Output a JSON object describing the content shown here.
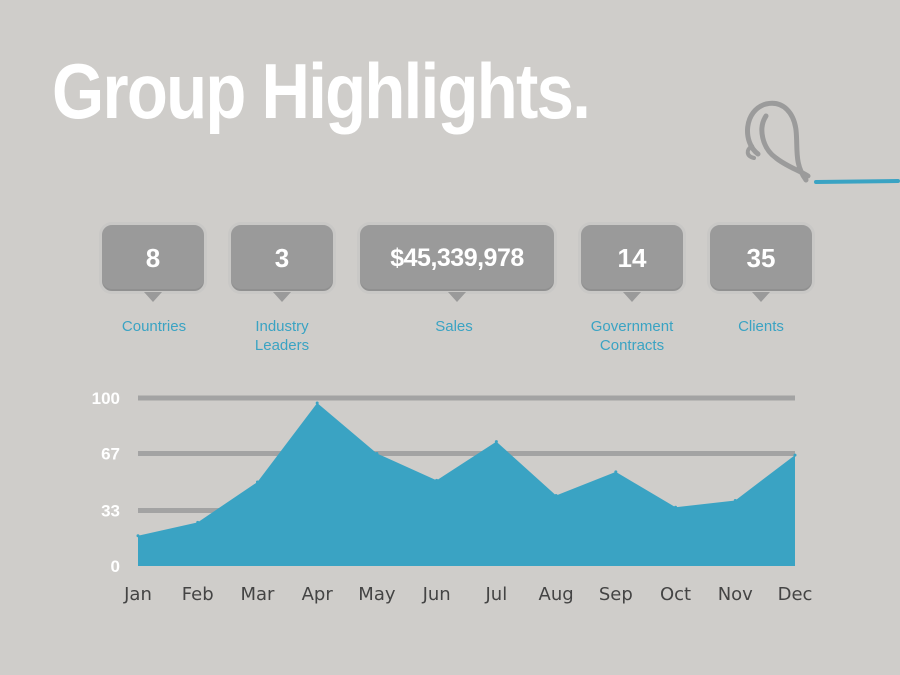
{
  "page": {
    "title": "Group Highlights."
  },
  "stats": [
    {
      "value": "8",
      "label": "Countries"
    },
    {
      "value": "3",
      "label": "Industry Leaders"
    },
    {
      "value": "$45,339,978",
      "label": "Sales"
    },
    {
      "value": "14",
      "label": "Government Contracts"
    },
    {
      "value": "35",
      "label": "Clients"
    }
  ],
  "colors": {
    "background": "#cfcdca",
    "accent": "#3aa3c3",
    "bubble": "#9a9a9a",
    "gridline": "#a3a3a3"
  },
  "chart_data": {
    "type": "area",
    "title": "",
    "xlabel": "",
    "ylabel": "",
    "categories": [
      "Jan",
      "Feb",
      "Mar",
      "Apr",
      "May",
      "Jun",
      "Jul",
      "Aug",
      "Sep",
      "Oct",
      "Nov",
      "Dec"
    ],
    "values": [
      18,
      26,
      50,
      97,
      67,
      51,
      74,
      42,
      56,
      35,
      39,
      66
    ],
    "yticks": [
      "100",
      "67",
      "33",
      "0"
    ],
    "ylim": [
      0,
      100
    ],
    "grid": true,
    "legend": "none"
  }
}
